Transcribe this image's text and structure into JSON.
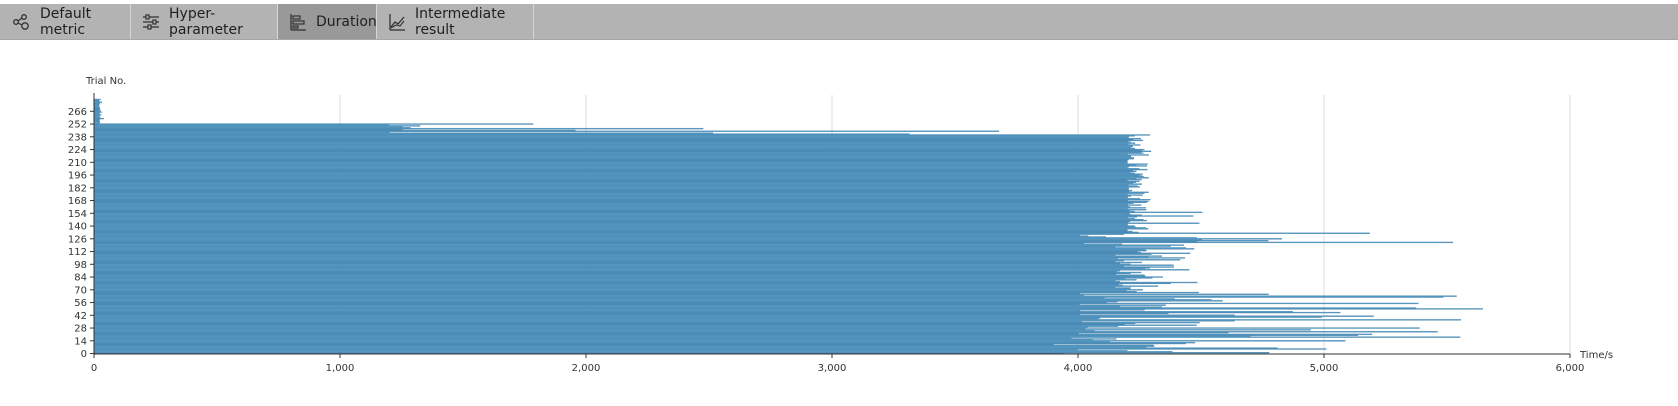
{
  "tabs": [
    {
      "label": "Default metric",
      "icon": "network-icon",
      "active": false
    },
    {
      "label": "Hyper-parameter",
      "icon": "sliders-icon",
      "active": false
    },
    {
      "label": "Duration",
      "icon": "bar-chart-icon",
      "active": true
    },
    {
      "label": "Intermediate result",
      "icon": "line-chart-icon",
      "active": false
    }
  ],
  "colors": {
    "bar": "#6aaed6",
    "bar_stroke": "#2f6f9c",
    "tab_bg": "#b3b3b3",
    "tab_active_bg": "#999999",
    "grid": "#dddddd",
    "axis": "#333333"
  },
  "chart_data": {
    "type": "bar",
    "orientation": "horizontal",
    "ylabel": "Trial No.",
    "xlabel": "Time/s",
    "xlim": [
      0,
      6000
    ],
    "x_ticks": [
      "0",
      "1,000",
      "2,000",
      "3,000",
      "4,000",
      "5,000",
      "6,000"
    ],
    "y_ticks": [
      "0",
      "14",
      "28",
      "42",
      "56",
      "70",
      "84",
      "98",
      "112",
      "126",
      "140",
      "154",
      "168",
      "182",
      "196",
      "210",
      "224",
      "238",
      "252",
      "266"
    ],
    "grid": true,
    "trial_count": 280,
    "duration_profile": [
      {
        "trial_from": 0,
        "trial_to": 20,
        "min": 3900,
        "max": 5600
      },
      {
        "trial_from": 21,
        "trial_to": 66,
        "min": 4000,
        "max": 5700
      },
      {
        "trial_from": 67,
        "trial_to": 120,
        "min": 4150,
        "max": 4500
      },
      {
        "trial_from": 121,
        "trial_to": 132,
        "min": 4000,
        "max": 5530
      },
      {
        "trial_from": 133,
        "trial_to": 160,
        "min": 4200,
        "max": 4520
      },
      {
        "trial_from": 161,
        "trial_to": 240,
        "min": 4200,
        "max": 4300
      },
      {
        "trial_from": 241,
        "trial_to": 252,
        "min": 1190,
        "max": 3800
      },
      {
        "trial_from": 253,
        "trial_to": 279,
        "min": 20,
        "max": 40
      }
    ]
  }
}
